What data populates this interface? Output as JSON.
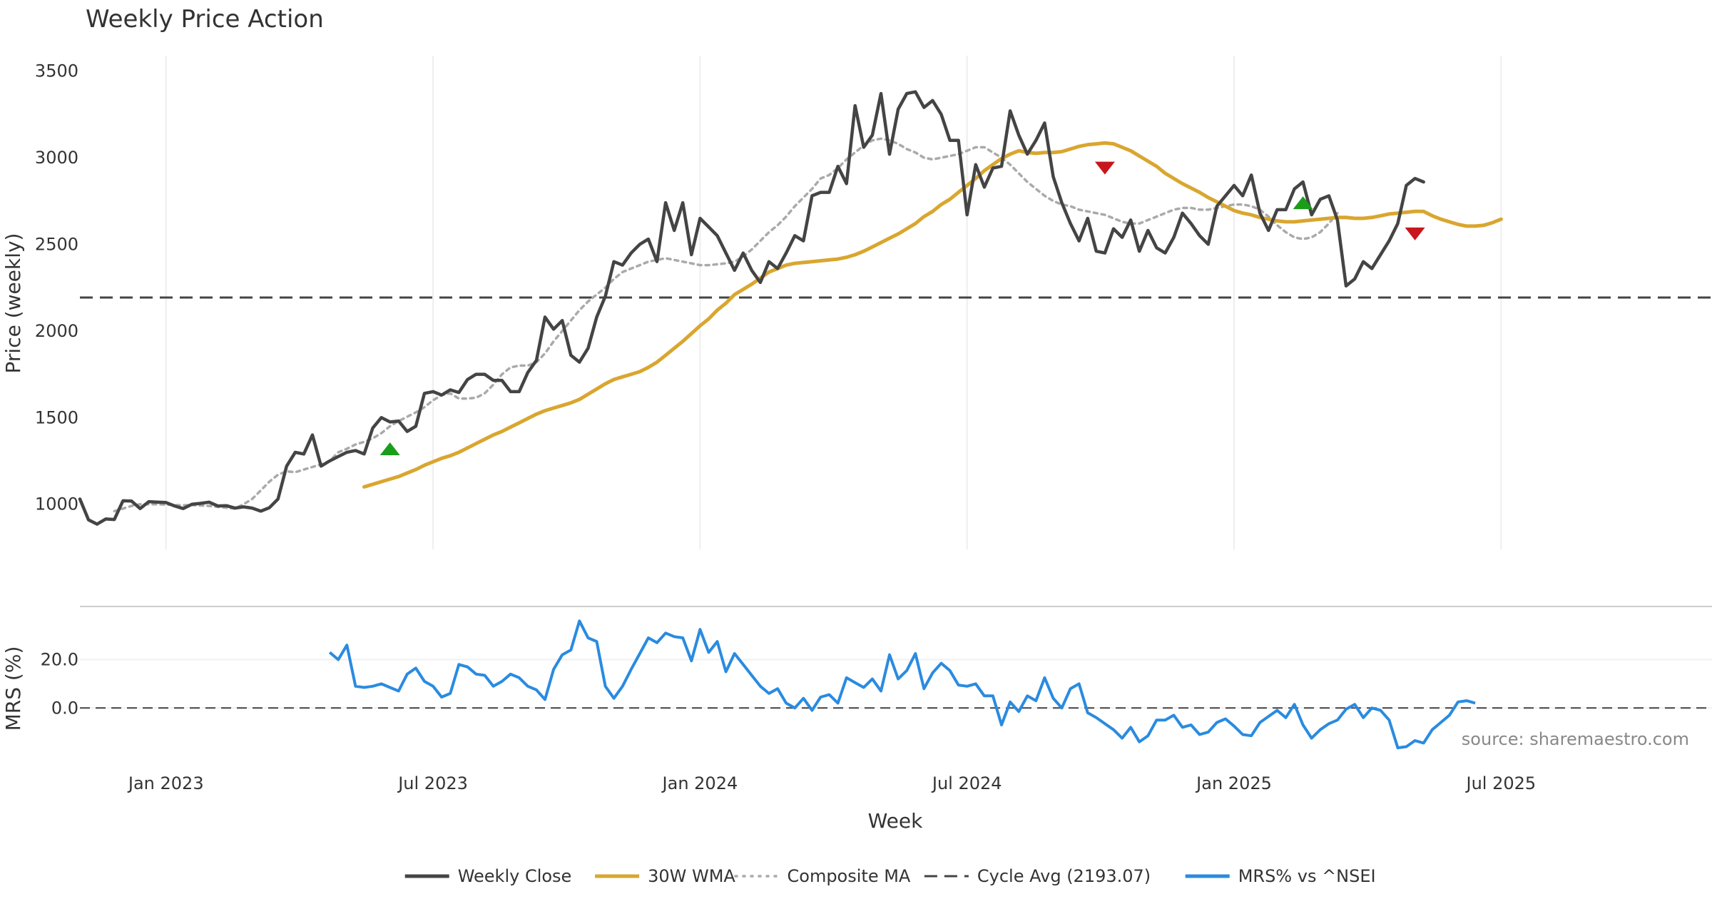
{
  "chart_data": [
    {
      "type": "line",
      "title": "Weekly Price Action",
      "ylabel": "Price (weekly)",
      "ylim": [
        760,
        3560
      ],
      "yticks": [
        1000,
        1500,
        2000,
        2500,
        3000,
        3500
      ],
      "grid": "vertical",
      "x_labels": [
        "Jan 2023",
        "Jul 2023",
        "Jan 2024",
        "Jul 2024",
        "Jan 2025",
        "Jul 2025"
      ],
      "x_label_weeks": [
        10,
        41,
        72,
        103,
        134,
        165
      ],
      "weeks": 188,
      "reference_line": {
        "label": "Cycle Avg (2193.07)",
        "value": 2193.07
      },
      "series": [
        {
          "name": "Weekly Close",
          "color": "#444444",
          "values": [
            1030,
            910,
            885,
            915,
            912,
            1020,
            1018,
            975,
            1015,
            1012,
            1010,
            990,
            975,
            1000,
            1005,
            1012,
            990,
            992,
            978,
            985,
            978,
            960,
            980,
            1030,
            1220,
            1300,
            1290,
            1400,
            1220,
            1250,
            1275,
            1300,
            1310,
            1290,
            1440,
            1500,
            1475,
            1480,
            1420,
            1450,
            1640,
            1650,
            1630,
            1660,
            1645,
            1720,
            1750,
            1750,
            1715,
            1715,
            1650,
            1650,
            1760,
            1830,
            2080,
            2010,
            2060,
            1860,
            1820,
            1900,
            2080,
            2200,
            2400,
            2380,
            2450,
            2500,
            2530,
            2400,
            2740,
            2580,
            2740,
            2440,
            2650,
            2600,
            2550,
            2450,
            2350,
            2450,
            2350,
            2280,
            2400,
            2360,
            2450,
            2550,
            2520,
            2780,
            2800,
            2800,
            2950,
            2850,
            3300,
            3060,
            3130,
            3370,
            3020,
            3280,
            3370,
            3380,
            3290,
            3330,
            3250,
            3100,
            3100,
            2670,
            2960,
            2830,
            2940,
            2950,
            3270,
            3130,
            3020,
            3100,
            3200,
            2890,
            2740,
            2620,
            2520,
            2650,
            2460,
            2450,
            2590,
            2540,
            2640,
            2460,
            2580,
            2480,
            2450,
            2540,
            2680,
            2620,
            2550,
            2500,
            2720,
            2780,
            2840,
            2780,
            2900,
            2680,
            2580,
            2700,
            2700,
            2820,
            2860,
            2670,
            2760,
            2780,
            2640,
            2260,
            2300,
            2400,
            2360,
            2440,
            2520,
            2620,
            2840,
            2880,
            2860
          ],
          "start_week": 0
        },
        {
          "name": "30W WMA",
          "color": "#D9A62F",
          "values": [
            1100,
            1115,
            1130,
            1145,
            1160,
            1180,
            1200,
            1225,
            1245,
            1265,
            1280,
            1300,
            1325,
            1350,
            1375,
            1400,
            1420,
            1445,
            1470,
            1495,
            1520,
            1540,
            1555,
            1570,
            1585,
            1605,
            1635,
            1665,
            1695,
            1720,
            1735,
            1750,
            1765,
            1790,
            1820,
            1860,
            1900,
            1940,
            1985,
            2030,
            2070,
            2120,
            2160,
            2210,
            2240,
            2270,
            2305,
            2340,
            2360,
            2380,
            2390,
            2395,
            2400,
            2405,
            2410,
            2415,
            2425,
            2440,
            2460,
            2485,
            2510,
            2535,
            2560,
            2590,
            2620,
            2660,
            2690,
            2730,
            2760,
            2800,
            2840,
            2880,
            2925,
            2960,
            2995,
            3020,
            3040,
            3030,
            3025,
            3030,
            3030,
            3035,
            3050,
            3065,
            3075,
            3080,
            3085,
            3080,
            3060,
            3040,
            3010,
            2980,
            2950,
            2910,
            2880,
            2850,
            2825,
            2800,
            2770,
            2745,
            2720,
            2695,
            2680,
            2670,
            2655,
            2645,
            2635,
            2630,
            2630,
            2635,
            2640,
            2645,
            2650,
            2655,
            2655,
            2650,
            2650,
            2655,
            2665,
            2675,
            2680,
            2685,
            2690,
            2690,
            2665,
            2645,
            2630,
            2615,
            2605,
            2605,
            2610,
            2625,
            2645
          ],
          "start_week": 33
        },
        {
          "name": "Composite MA",
          "color": "#AAAAAA",
          "values": [
            960,
            975,
            990,
            1000,
            1000,
            1000,
            998,
            995,
            994,
            995,
            993,
            990,
            985,
            980,
            975,
            1000,
            1030,
            1080,
            1130,
            1170,
            1190,
            1185,
            1200,
            1215,
            1230,
            1250,
            1300,
            1320,
            1345,
            1360,
            1380,
            1410,
            1450,
            1480,
            1505,
            1530,
            1560,
            1600,
            1630,
            1640,
            1610,
            1610,
            1615,
            1640,
            1690,
            1750,
            1790,
            1800,
            1800,
            1820,
            1870,
            1940,
            2000,
            2060,
            2120,
            2170,
            2210,
            2250,
            2300,
            2340,
            2360,
            2380,
            2400,
            2410,
            2420,
            2410,
            2400,
            2390,
            2380,
            2380,
            2385,
            2390,
            2400,
            2430,
            2470,
            2520,
            2570,
            2610,
            2660,
            2720,
            2770,
            2820,
            2880,
            2900,
            2940,
            2990,
            3030,
            3070,
            3100,
            3110,
            3100,
            3080,
            3050,
            3030,
            3000,
            2990,
            3000,
            3010,
            3020,
            3040,
            3060,
            3060,
            3030,
            3000,
            2960,
            2910,
            2860,
            2820,
            2780,
            2750,
            2730,
            2720,
            2700,
            2690,
            2680,
            2670,
            2650,
            2630,
            2620,
            2620,
            2640,
            2660,
            2680,
            2700,
            2710,
            2710,
            2700,
            2700,
            2710,
            2720,
            2730,
            2730,
            2720,
            2700,
            2660,
            2610,
            2570,
            2540,
            2530,
            2540,
            2570,
            2620,
            2680
          ],
          "start_week": 4
        }
      ],
      "markers": [
        {
          "type": "buy",
          "color": "#1A9E1A",
          "week": 36,
          "value": 1320
        },
        {
          "type": "sell",
          "color": "#C8161D",
          "week": 119,
          "value": 2940
        },
        {
          "type": "buy",
          "color": "#1A9E1A",
          "week": 142,
          "value": 2740
        },
        {
          "type": "sell",
          "color": "#C8161D",
          "week": 155,
          "value": 2560
        }
      ]
    },
    {
      "type": "line",
      "xlabel": "Week",
      "ylabel": "MRS (%)",
      "ylim": [
        -20,
        42
      ],
      "yticks": [
        "0.0",
        "20.0"
      ],
      "ytick_values": [
        0,
        20
      ],
      "reference_line": {
        "value": 0
      },
      "source": "source: sharemaestro.com",
      "series": [
        {
          "name": "MRS% vs ^NSEI",
          "color": "#2A8BE0",
          "start_week": 29,
          "values": [
            23,
            20,
            26,
            9,
            8.5,
            9,
            10,
            8.5,
            7,
            14,
            16.5,
            11,
            9,
            4.5,
            6,
            18,
            17,
            14,
            13.5,
            9,
            11,
            14,
            12.5,
            9,
            7.5,
            3.5,
            16,
            22,
            24,
            36,
            29,
            27.5,
            9,
            4,
            9,
            16,
            22.5,
            29,
            27,
            31,
            29.5,
            29,
            19.5,
            32.5,
            23,
            27.5,
            15,
            22.5,
            18,
            13.5,
            9,
            6,
            8,
            2,
            0,
            4,
            -1,
            4.5,
            5.5,
            2,
            12.5,
            10.5,
            8.5,
            12,
            7,
            22,
            12,
            15.5,
            22.5,
            8,
            14.5,
            18.5,
            15.5,
            9.5,
            9,
            10,
            5,
            5,
            -7,
            2.5,
            -1.5,
            5,
            3,
            12.5,
            4,
            0,
            8,
            10,
            -2,
            -4,
            -6.5,
            -9,
            -12.5,
            -8,
            -14,
            -11.5,
            -5,
            -5,
            -3,
            -8,
            -7,
            -11,
            -10,
            -6,
            -4.5,
            -7.5,
            -11,
            -11.5,
            -6,
            -3.5,
            -1,
            -4,
            1.5,
            -7,
            -12.5,
            -9,
            -6.5,
            -5,
            -0.5,
            1.5,
            -4,
            0,
            -1,
            -5,
            -16.5,
            -16,
            -13.5,
            -14.5,
            -9,
            -6,
            -3,
            2.5,
            3,
            2
          ]
        }
      ]
    }
  ],
  "legend": [
    {
      "label": "Weekly Close",
      "color": "#444444",
      "style": "solid"
    },
    {
      "label": "30W WMA",
      "color": "#D9A62F",
      "style": "solid"
    },
    {
      "label": "Composite MA",
      "color": "#AAAAAA",
      "style": "dotted"
    },
    {
      "label": "Cycle Avg (2193.07)",
      "color": "#444444",
      "style": "dashed"
    },
    {
      "label": "MRS% vs ^NSEI",
      "color": "#2A8BE0",
      "style": "solid"
    }
  ]
}
